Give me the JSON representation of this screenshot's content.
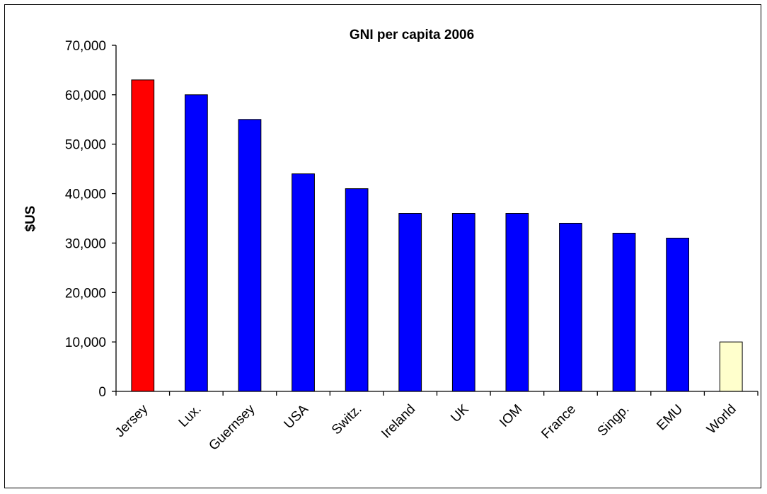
{
  "chart_data": {
    "type": "bar",
    "title": "GNI per capita 2006",
    "xlabel": "",
    "ylabel": "$US",
    "ylim": [
      0,
      70000
    ],
    "yticks": [
      "0",
      "10,000",
      "20,000",
      "30,000",
      "40,000",
      "50,000",
      "60,000",
      "70,000"
    ],
    "categories": [
      "Jersey",
      "Lux.",
      "Guernsey",
      "USA",
      "Switz.",
      "Ireland",
      "UK",
      "IOM",
      "France",
      "Singp.",
      "EMU",
      "World"
    ],
    "values": [
      63000,
      60000,
      55000,
      44000,
      41000,
      36000,
      36000,
      36000,
      34000,
      32000,
      31000,
      10000
    ],
    "colors": [
      "#ff0000",
      "#0000ff",
      "#0000ff",
      "#0000ff",
      "#0000ff",
      "#0000ff",
      "#0000ff",
      "#0000ff",
      "#0000ff",
      "#0000ff",
      "#0000ff",
      "#ffffcc"
    ],
    "grid": false,
    "legend": "none"
  }
}
